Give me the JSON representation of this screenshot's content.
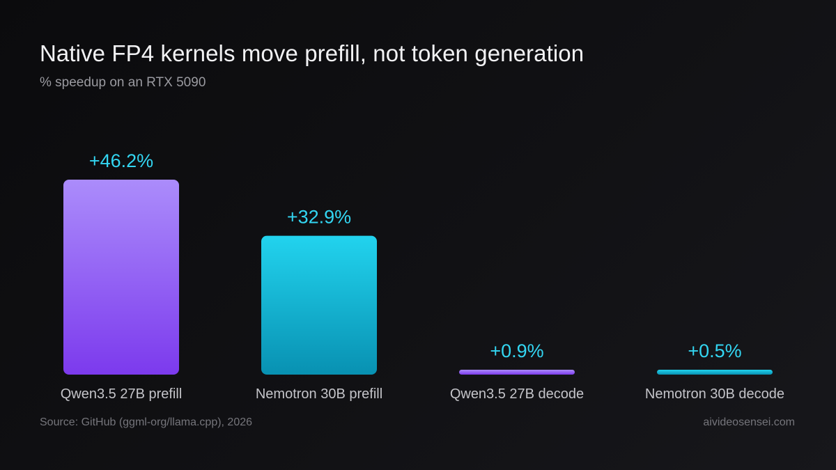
{
  "header": {
    "title": "Native FP4 kernels move prefill, not token generation",
    "subtitle": "% speedup on an RTX 5090"
  },
  "footer": {
    "source": "Source: GitHub (ggml-org/llama.cpp), 2026",
    "site": "aivideosensei.com"
  },
  "colors": {
    "value_label": "#33d6f2",
    "category_label": "#c4c4c9",
    "purple_top": "#ab8cfb",
    "purple_bottom": "#7c3aed",
    "cyan_top": "#22d3ee",
    "cyan_bottom": "#0891b2"
  },
  "chart_data": {
    "type": "bar",
    "categories": [
      "Qwen3.5 27B prefill",
      "Nemotron 30B prefill",
      "Qwen3.5 27B decode",
      "Nemotron 30B decode"
    ],
    "values": [
      46.2,
      32.9,
      0.9,
      0.5
    ],
    "value_labels": [
      "+46.2%",
      "+32.9%",
      "+0.9%",
      "+0.5%"
    ],
    "bar_colors": [
      "purple",
      "cyan",
      "purple",
      "cyan"
    ],
    "unit": "%",
    "ylim": [
      0,
      46.2
    ],
    "grid": false,
    "legend": "none"
  }
}
